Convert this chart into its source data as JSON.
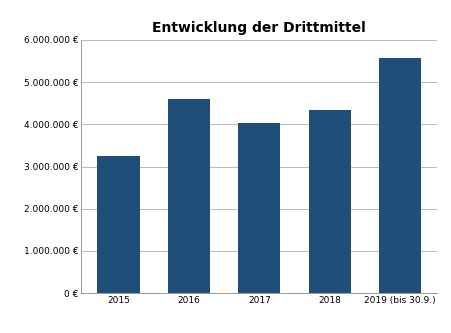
{
  "title": "Entwicklung der Drittmittel",
  "categories": [
    "2015",
    "2016",
    "2017",
    "2018",
    "2019 (bis 30.9.)"
  ],
  "values": [
    3250000,
    4600000,
    4020000,
    4330000,
    5580000
  ],
  "bar_color": "#1F4E79",
  "ylim": [
    0,
    6000000
  ],
  "yticks": [
    0,
    1000000,
    2000000,
    3000000,
    4000000,
    5000000,
    6000000
  ],
  "ytick_labels": [
    "0 €",
    "1.000.000 €",
    "2.000.000 €",
    "3.000.000 €",
    "4.000.000 €",
    "5.000.000 €",
    "6.000.000 €"
  ],
  "background_color": "#ffffff",
  "grid_color": "#b0b0b0",
  "title_fontsize": 10,
  "tick_fontsize": 6.5,
  "bar_width": 0.6
}
